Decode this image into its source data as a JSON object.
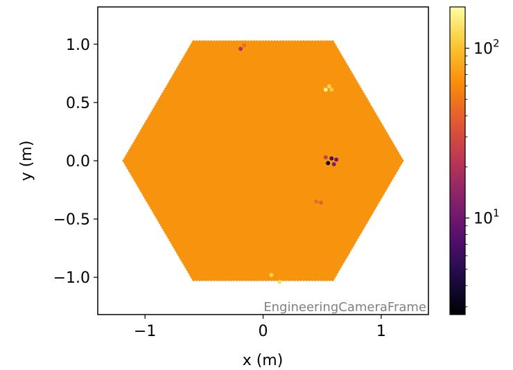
{
  "chart_data": {
    "type": "heatmap",
    "description_kind": "hexagonal camera pixel image",
    "xlabel": "x  (m)",
    "ylabel": "y  (m)",
    "xlim": [
      -1.4,
      1.4
    ],
    "ylim": [
      -1.32,
      1.32
    ],
    "x_ticks": [
      -1,
      0,
      1
    ],
    "x_tick_labels": [
      "−1",
      "0",
      "1"
    ],
    "y_ticks": [
      -1.0,
      -0.5,
      0.0,
      0.5,
      1.0
    ],
    "y_tick_labels": [
      "−1.0",
      "−0.5",
      "0.0",
      "0.5",
      "1.0"
    ],
    "frame_label": "EngineeringCameraFrame",
    "colorbar": {
      "scale": "log",
      "colormap": "inferno",
      "range": [
        2.7,
        175
      ],
      "major_ticks": [
        10,
        100
      ],
      "major_tick_base": "10",
      "major_tick_exponents": [
        "1",
        "2"
      ]
    },
    "camera": {
      "shape": "hexagon",
      "circumradius_m": 1.19,
      "pixel_pitch_m": 0.0245,
      "baseline_value": 65
    },
    "highlighted_pixels": [
      {
        "x": -0.19,
        "y": 0.96,
        "value": 20
      },
      {
        "x": -0.16,
        "y": 0.99,
        "value": 45
      },
      {
        "x": 0.53,
        "y": 0.61,
        "value": 160
      },
      {
        "x": 0.56,
        "y": 0.64,
        "value": 120
      },
      {
        "x": 0.58,
        "y": 0.61,
        "value": 110
      },
      {
        "x": 0.55,
        "y": -0.02,
        "value": 2.7
      },
      {
        "x": 0.58,
        "y": 0.02,
        "value": 7
      },
      {
        "x": 0.62,
        "y": 0.01,
        "value": 10
      },
      {
        "x": 0.6,
        "y": -0.03,
        "value": 12
      },
      {
        "x": 0.53,
        "y": 0.03,
        "value": 25
      },
      {
        "x": 0.45,
        "y": -0.35,
        "value": 45
      },
      {
        "x": 0.49,
        "y": -0.36,
        "value": 40
      },
      {
        "x": 0.07,
        "y": -0.98,
        "value": 120
      },
      {
        "x": 0.14,
        "y": -1.04,
        "value": 130
      }
    ]
  }
}
